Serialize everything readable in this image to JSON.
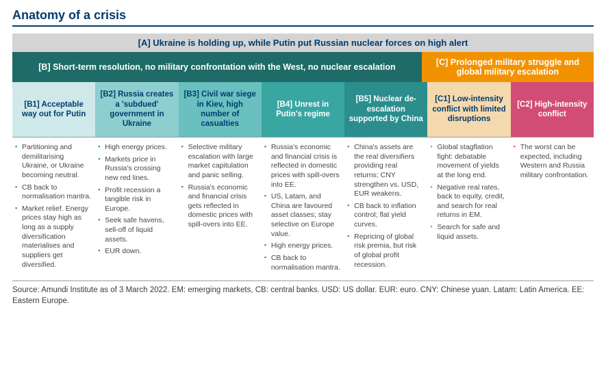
{
  "title": "Anatomy of a crisis",
  "headerA": "[A] Ukraine is holding up, while Putin put Russian nuclear forces on high alert",
  "headerB": "[B] Short-term resolution, no military confrontation with the West, no nuclear escalation",
  "headerC": "[C] Prolonged military struggle and global military escalation",
  "colors": {
    "title": "#003c6e",
    "a_bg": "#d4d4d4",
    "b_bg": "#1e6b67",
    "c_bg": "#f39200",
    "cells": [
      {
        "bg": "#cfe9ea",
        "fg": "#003c6e"
      },
      {
        "bg": "#8dcfcf",
        "fg": "#003c6e"
      },
      {
        "bg": "#6ac0bf",
        "fg": "#003c6e"
      },
      {
        "bg": "#3aa6a2",
        "fg": "#ffffff"
      },
      {
        "bg": "#2b8e8c",
        "fg": "#ffffff"
      },
      {
        "bg": "#f5d9ae",
        "fg": "#003c6e"
      },
      {
        "bg": "#d24d75",
        "fg": "#ffffff"
      }
    ],
    "bullet": [
      "#2b8e8c",
      "#2b8e8c",
      "#2b8e8c",
      "#2b8e8c",
      "#2b8e8c",
      "#f39200",
      "#d24d75"
    ]
  },
  "cells": [
    "[B1] Acceptable way out for Putin",
    "[B2] Russia creates a 'subdued' government in Ukraine",
    "[B3] Civil war siege in Kiev, high number of casualties",
    "[B4] Unrest in Putin's regime",
    "[B5] Nuclear de-escalation supported by China",
    "[C1] Low-intensity conflict with limited disruptions",
    "[C2] High-intensity conflict"
  ],
  "bullets": [
    [
      "Partitioning and demilitarising Ukraine, or Ukraine becoming neutral.",
      "CB back to normalisation mantra.",
      "Market relief. Energy prices stay high as long as a supply diversification materialises and suppliers get diversified."
    ],
    [
      "High energy prices.",
      "Markets price in Russia's crossing new red lines.",
      "Profit recession a tangible risk in Europe.",
      "Seek safe havens, sell-off of liquid assets.",
      "EUR down."
    ],
    [
      "Selective military escalation with large market capitulation and panic selling.",
      "Russia's economic and financial crisis gets reflected in domestic prices with spill-overs into EE."
    ],
    [
      "Russia's economic and financial crisis is reflected in domestic prices with spill-overs into EE.",
      "US, Latam, and China are favoured asset classes; stay selective on Europe value.",
      "High energy prices.",
      "CB back to normalisation mantra."
    ],
    [
      "China's assets are the real diversifiers providing real returns; CNY strengthen vs. USD, EUR weakens.",
      "CB back to inflation control; flat yield curves.",
      "Repricing of global risk premia, but risk of global profit recession."
    ],
    [
      "Global stagflation fight: debatable movement of yields at the long end.",
      "Negative real rates, back to equity, credit, and search for real returns in EM.",
      "Search for safe and liquid assets."
    ],
    [
      "The worst can be expected, including Western and Russia military confrontation."
    ]
  ],
  "source": "Source: Amundi Institute as of 3 March 2022. EM: emerging markets, CB: central banks. USD: US dollar. EUR: euro. CNY: Chinese yuan. Latam: Latin America. EE: Eastern Europe."
}
